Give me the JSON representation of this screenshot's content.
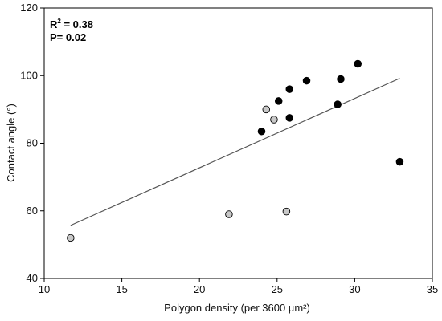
{
  "chart_data": {
    "type": "scatter",
    "xlabel": "Polygon density (per 3600 µm²)",
    "ylabel": "Contact angle (°)",
    "xlim": [
      10,
      35
    ],
    "ylim": [
      40,
      120
    ],
    "x_ticks": [
      "10",
      "15",
      "20",
      "25",
      "30",
      "35"
    ],
    "y_ticks": [
      "40",
      "60",
      "80",
      "100",
      "120"
    ],
    "grid": false,
    "annotation": {
      "r2_label": "R",
      "r2_sup": "2",
      "r2_value": " = 0.38",
      "p_text": "P= 0.02"
    },
    "series": [
      {
        "marker": "filled-black",
        "color": "#000000",
        "points": [
          {
            "x": 24.0,
            "y": 83.5
          },
          {
            "x": 25.1,
            "y": 92.5
          },
          {
            "x": 25.8,
            "y": 96.0
          },
          {
            "x": 25.8,
            "y": 87.5
          },
          {
            "x": 26.9,
            "y": 98.5
          },
          {
            "x": 28.9,
            "y": 91.5
          },
          {
            "x": 29.1,
            "y": 99.0
          },
          {
            "x": 30.2,
            "y": 103.5
          },
          {
            "x": 32.9,
            "y": 74.5
          }
        ]
      },
      {
        "marker": "filled-grey",
        "color": "#c8c8c8",
        "points": [
          {
            "x": 11.7,
            "y": 52.0
          },
          {
            "x": 21.9,
            "y": 59.0
          },
          {
            "x": 24.3,
            "y": 90.0
          },
          {
            "x": 24.8,
            "y": 87.0
          },
          {
            "x": 25.6,
            "y": 59.8
          }
        ]
      }
    ],
    "trendline": {
      "x1": 11.7,
      "y1": 55.7,
      "x2": 32.9,
      "y2": 99.2,
      "color": "#555555"
    }
  }
}
